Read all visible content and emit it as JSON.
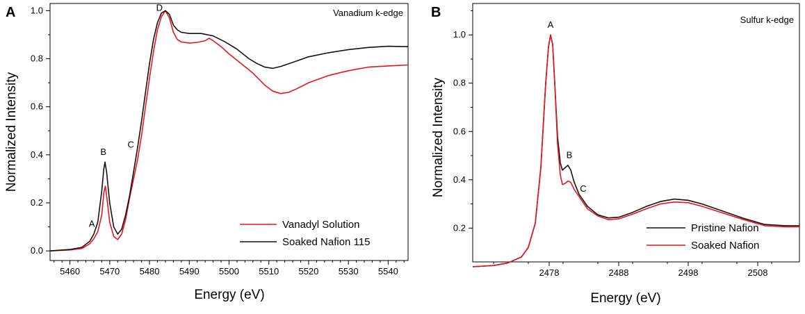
{
  "figure": {
    "panels": [
      {
        "letter": "A",
        "edge_title": "Vanadium k-edge"
      },
      {
        "letter": "B",
        "edge_title": "Sulfur k-edge"
      }
    ]
  },
  "chart_data": [
    {
      "type": "line",
      "panel": "A",
      "title": "Vanadium k-edge",
      "xlabel": "Energy (eV)",
      "ylabel": "Normalized Intensity",
      "xlim": [
        5455,
        5545
      ],
      "ylim": [
        -0.04,
        1.03
      ],
      "xticks": [
        5460,
        5470,
        5480,
        5490,
        5500,
        5510,
        5520,
        5530,
        5540
      ],
      "yticks": [
        0.0,
        0.2,
        0.4,
        0.6,
        0.8,
        1.0
      ],
      "ytick_labels": [
        "0.0",
        "0.2",
        "0.4",
        "0.6",
        "0.8",
        "1.0"
      ],
      "legend_position": "bottom-right",
      "series": [
        {
          "name": "Vanadyl Solution",
          "color": "#e8141b",
          "points": [
            [
              5455,
              0.0
            ],
            [
              5460,
              0.004
            ],
            [
              5463,
              0.01
            ],
            [
              5465,
              0.03
            ],
            [
              5466,
              0.05
            ],
            [
              5467,
              0.08
            ],
            [
              5468,
              0.15
            ],
            [
              5468.5,
              0.24
            ],
            [
              5468.9,
              0.27
            ],
            [
              5469.3,
              0.22
            ],
            [
              5470,
              0.12
            ],
            [
              5471,
              0.06
            ],
            [
              5472,
              0.047
            ],
            [
              5473,
              0.07
            ],
            [
              5474,
              0.13
            ],
            [
              5475,
              0.22
            ],
            [
              5476,
              0.3
            ],
            [
              5477,
              0.38
            ],
            [
              5478,
              0.48
            ],
            [
              5479,
              0.6
            ],
            [
              5480,
              0.72
            ],
            [
              5481,
              0.83
            ],
            [
              5482,
              0.92
            ],
            [
              5483,
              0.975
            ],
            [
              5484,
              1.0
            ],
            [
              5485,
              0.97
            ],
            [
              5486,
              0.91
            ],
            [
              5487,
              0.88
            ],
            [
              5488,
              0.87
            ],
            [
              5490,
              0.865
            ],
            [
              5492,
              0.868
            ],
            [
              5494,
              0.875
            ],
            [
              5495,
              0.885
            ],
            [
              5496,
              0.875
            ],
            [
              5498,
              0.85
            ],
            [
              5500,
              0.82
            ],
            [
              5503,
              0.78
            ],
            [
              5506,
              0.74
            ],
            [
              5509,
              0.69
            ],
            [
              5511,
              0.665
            ],
            [
              5513,
              0.655
            ],
            [
              5515,
              0.66
            ],
            [
              5517,
              0.675
            ],
            [
              5520,
              0.7
            ],
            [
              5525,
              0.73
            ],
            [
              5530,
              0.75
            ],
            [
              5535,
              0.765
            ],
            [
              5540,
              0.77
            ],
            [
              5545,
              0.774
            ]
          ]
        },
        {
          "name": "Soaked Nafion 115",
          "color": "#111111",
          "points": [
            [
              5455,
              0.0
            ],
            [
              5460,
              0.006
            ],
            [
              5463,
              0.015
            ],
            [
              5465,
              0.04
            ],
            [
              5466,
              0.07
            ],
            [
              5467,
              0.12
            ],
            [
              5468,
              0.25
            ],
            [
              5468.5,
              0.34
            ],
            [
              5468.8,
              0.37
            ],
            [
              5469.2,
              0.33
            ],
            [
              5470,
              0.2
            ],
            [
              5471,
              0.1
            ],
            [
              5472,
              0.07
            ],
            [
              5473,
              0.09
            ],
            [
              5474,
              0.15
            ],
            [
              5475,
              0.23
            ],
            [
              5476,
              0.33
            ],
            [
              5477,
              0.43
            ],
            [
              5478,
              0.54
            ],
            [
              5479,
              0.66
            ],
            [
              5480,
              0.78
            ],
            [
              5481,
              0.88
            ],
            [
              5482,
              0.95
            ],
            [
              5483,
              0.99
            ],
            [
              5484,
              1.0
            ],
            [
              5485,
              0.985
            ],
            [
              5486,
              0.94
            ],
            [
              5487,
              0.92
            ],
            [
              5488,
              0.91
            ],
            [
              5490,
              0.905
            ],
            [
              5493,
              0.905
            ],
            [
              5496,
              0.895
            ],
            [
              5499,
              0.87
            ],
            [
              5502,
              0.84
            ],
            [
              5505,
              0.8
            ],
            [
              5507,
              0.78
            ],
            [
              5509,
              0.765
            ],
            [
              5511,
              0.76
            ],
            [
              5513,
              0.768
            ],
            [
              5516,
              0.785
            ],
            [
              5520,
              0.808
            ],
            [
              5525,
              0.825
            ],
            [
              5530,
              0.838
            ],
            [
              5535,
              0.847
            ],
            [
              5540,
              0.852
            ],
            [
              5545,
              0.85
            ]
          ]
        }
      ],
      "annotations": [
        {
          "text": "A",
          "x": 5465.5,
          "y": 0.1
        },
        {
          "text": "B",
          "x": 5468.4,
          "y": 0.4
        },
        {
          "text": "C",
          "x": 5475.3,
          "y": 0.43
        },
        {
          "text": "D",
          "x": 5482.5,
          "y": 1.0
        }
      ]
    },
    {
      "type": "line",
      "panel": "B",
      "title": "Sulfur k-edge",
      "xlabel": "Energy (eV)",
      "ylabel": "Normalized Intensity",
      "xlim": [
        2467,
        2514
      ],
      "ylim": [
        0.06,
        1.13
      ],
      "xticks": [
        2478,
        2488,
        2498,
        2508
      ],
      "yticks": [
        0.2,
        0.4,
        0.6,
        0.8,
        1.0
      ],
      "ytick_labels": [
        "0.2",
        "0.4",
        "0.6",
        "0.8",
        "1.0"
      ],
      "legend_position": "bottom-right",
      "series": [
        {
          "name": "Pristine Nafion",
          "color": "#111111",
          "points": [
            [
              2467,
              0.04
            ],
            [
              2470,
              0.045
            ],
            [
              2472,
              0.055
            ],
            [
              2474,
              0.08
            ],
            [
              2475,
              0.12
            ],
            [
              2476,
              0.22
            ],
            [
              2476.8,
              0.45
            ],
            [
              2477.5,
              0.8
            ],
            [
              2477.9,
              0.95
            ],
            [
              2478.2,
              1.0
            ],
            [
              2478.5,
              0.96
            ],
            [
              2478.8,
              0.8
            ],
            [
              2479.2,
              0.58
            ],
            [
              2479.6,
              0.47
            ],
            [
              2479.9,
              0.44
            ],
            [
              2480.3,
              0.45
            ],
            [
              2480.7,
              0.46
            ],
            [
              2481.1,
              0.44
            ],
            [
              2481.6,
              0.39
            ],
            [
              2482.3,
              0.34
            ],
            [
              2483.5,
              0.29
            ],
            [
              2485,
              0.255
            ],
            [
              2486.5,
              0.242
            ],
            [
              2488,
              0.245
            ],
            [
              2490,
              0.265
            ],
            [
              2492,
              0.29
            ],
            [
              2494,
              0.31
            ],
            [
              2496,
              0.32
            ],
            [
              2498,
              0.315
            ],
            [
              2500,
              0.3
            ],
            [
              2503,
              0.27
            ],
            [
              2506,
              0.24
            ],
            [
              2509,
              0.215
            ],
            [
              2512,
              0.21
            ],
            [
              2514,
              0.21
            ]
          ]
        },
        {
          "name": "Soaked Nafion",
          "color": "#e8141b",
          "points": [
            [
              2467,
              0.04
            ],
            [
              2470,
              0.045
            ],
            [
              2472,
              0.055
            ],
            [
              2474,
              0.08
            ],
            [
              2475,
              0.12
            ],
            [
              2476,
              0.22
            ],
            [
              2476.8,
              0.45
            ],
            [
              2477.5,
              0.8
            ],
            [
              2477.9,
              0.95
            ],
            [
              2478.2,
              1.0
            ],
            [
              2478.5,
              0.96
            ],
            [
              2478.8,
              0.8
            ],
            [
              2479.2,
              0.55
            ],
            [
              2479.6,
              0.42
            ],
            [
              2479.9,
              0.38
            ],
            [
              2480.3,
              0.385
            ],
            [
              2480.7,
              0.395
            ],
            [
              2481.1,
              0.39
            ],
            [
              2481.6,
              0.36
            ],
            [
              2482.3,
              0.33
            ],
            [
              2483.5,
              0.28
            ],
            [
              2485,
              0.25
            ],
            [
              2486.5,
              0.235
            ],
            [
              2488,
              0.238
            ],
            [
              2490,
              0.258
            ],
            [
              2492,
              0.28
            ],
            [
              2494,
              0.3
            ],
            [
              2496,
              0.308
            ],
            [
              2498,
              0.305
            ],
            [
              2500,
              0.29
            ],
            [
              2503,
              0.262
            ],
            [
              2506,
              0.235
            ],
            [
              2509,
              0.21
            ],
            [
              2512,
              0.205
            ],
            [
              2514,
              0.205
            ]
          ]
        }
      ],
      "annotations": [
        {
          "text": "A",
          "x": 2478.2,
          "y": 1.03
        },
        {
          "text": "B",
          "x": 2480.9,
          "y": 0.49
        },
        {
          "text": "C",
          "x": 2482.9,
          "y": 0.35
        }
      ]
    }
  ]
}
